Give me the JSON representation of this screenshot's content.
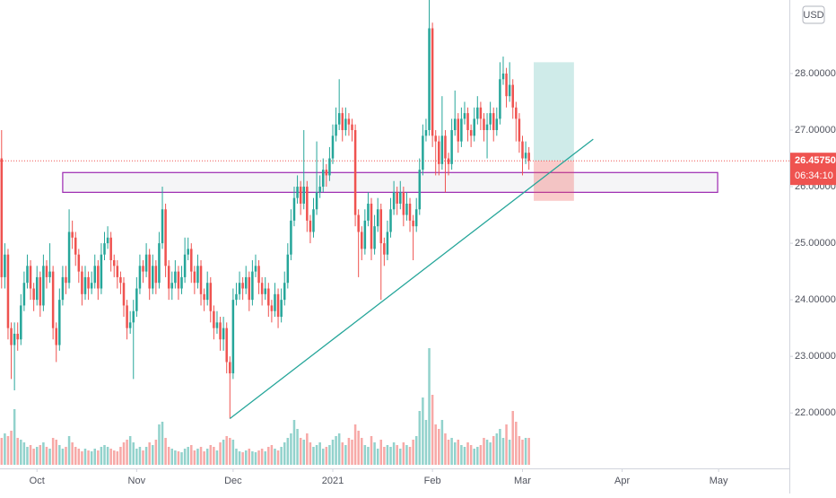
{
  "chart_data": {
    "type": "candlestick",
    "x": [
      0,
      1,
      2,
      3,
      4,
      5,
      6,
      7,
      8,
      9,
      10,
      11,
      12,
      13,
      14,
      15,
      16,
      17,
      18,
      19,
      20,
      21,
      22,
      23,
      24,
      25,
      26,
      27,
      28,
      29,
      30,
      31,
      32,
      33,
      34,
      35,
      36,
      37,
      38,
      39,
      40,
      41,
      42,
      43,
      44,
      45,
      46,
      47,
      48,
      49,
      50,
      51,
      52,
      53,
      54,
      55,
      56,
      57,
      58,
      59,
      60,
      61,
      62,
      63,
      64,
      65,
      66,
      67,
      68,
      69,
      70,
      71,
      72,
      73,
      74,
      75,
      76,
      77,
      78,
      79,
      80,
      81,
      82,
      83,
      84,
      85,
      86,
      87,
      88,
      89,
      90,
      91,
      92,
      93,
      94,
      95,
      96,
      97,
      98,
      99,
      100,
      101,
      102,
      103,
      104,
      105,
      106,
      107,
      108,
      109,
      110,
      111,
      112,
      113,
      114,
      115,
      116,
      117,
      118,
      119,
      120,
      121,
      122,
      123,
      124,
      125,
      126,
      127,
      128,
      129,
      130,
      131,
      132,
      133,
      134,
      135,
      136,
      137,
      138,
      139,
      140,
      141,
      142,
      143,
      144,
      145,
      146,
      147,
      148,
      149,
      150,
      151,
      152,
      153,
      154,
      155,
      156,
      157,
      158,
      159,
      160,
      161,
      162,
      163,
      164
    ],
    "open": [
      26.5,
      24.4,
      24.8,
      23.5,
      23.2,
      23.4,
      23.3,
      23.9,
      24.3,
      24.6,
      24.2,
      24.0,
      24.4,
      23.9,
      24.6,
      24.4,
      24.5,
      23.5,
      23.2,
      24.0,
      24.4,
      24.3,
      25.2,
      25.1,
      24.8,
      24.5,
      24.1,
      24.4,
      24.2,
      24.3,
      24.6,
      24.2,
      24.8,
      25.0,
      25.1,
      24.7,
      24.6,
      24.4,
      24.3,
      23.9,
      23.5,
      23.6,
      23.8,
      24.2,
      24.6,
      24.5,
      24.8,
      24.2,
      24.6,
      24.3,
      25.0,
      25.6,
      24.6,
      24.2,
      24.3,
      24.5,
      24.2,
      24.4,
      24.8,
      24.9,
      24.5,
      24.3,
      24.6,
      24.1,
      24.0,
      24.3,
      23.8,
      23.5,
      23.6,
      23.3,
      23.5,
      22.9,
      22.7,
      24.0,
      24.1,
      24.3,
      24.2,
      24.4,
      24.0,
      24.5,
      24.6,
      24.3,
      24.1,
      24.2,
      23.9,
      23.8,
      24.1,
      23.7,
      24.0,
      24.3,
      24.8,
      25.4,
      25.8,
      26.0,
      25.7,
      26.0,
      25.4,
      25.2,
      25.6,
      25.9,
      26.0,
      26.3,
      26.2,
      26.5,
      26.9,
      27.1,
      27.3,
      27.0,
      27.2,
      27.1,
      27.0,
      25.5,
      25.2,
      24.9,
      25.4,
      25.7,
      24.9,
      25.3,
      25.6,
      25.0,
      24.8,
      25.2,
      25.6,
      25.9,
      25.7,
      25.9,
      25.5,
      25.7,
      25.4,
      25.3,
      25.6,
      26.3,
      26.9,
      27.0,
      28.8,
      26.9,
      26.8,
      26.4,
      26.9,
      26.5,
      26.4,
      27.0,
      27.2,
      26.8,
      27.2,
      27.3,
      27.0,
      26.9,
      27.2,
      27.4,
      27.2,
      27.0,
      27.1,
      27.3,
      27.0,
      27.2,
      27.9,
      28.0,
      27.6,
      27.8,
      27.4,
      27.2,
      26.8,
      26.5,
      26.6
    ],
    "high": [
      27.0,
      25.0,
      24.9,
      23.6,
      23.6,
      23.6,
      24.1,
      24.5,
      24.8,
      24.7,
      24.3,
      24.6,
      24.5,
      24.8,
      24.7,
      25.0,
      24.6,
      23.6,
      24.2,
      24.6,
      24.6,
      25.6,
      25.4,
      25.2,
      24.9,
      24.6,
      24.6,
      24.5,
      24.5,
      24.8,
      24.7,
      25.0,
      25.2,
      25.3,
      25.2,
      24.8,
      24.7,
      24.5,
      24.4,
      24.0,
      23.8,
      24.0,
      24.4,
      24.8,
      24.7,
      25.0,
      24.9,
      24.8,
      24.7,
      25.2,
      26.0,
      25.7,
      24.7,
      24.5,
      24.7,
      24.6,
      24.6,
      25.1,
      25.1,
      25.0,
      24.6,
      24.8,
      24.7,
      24.2,
      24.5,
      24.4,
      23.9,
      23.8,
      23.7,
      23.7,
      23.6,
      23.0,
      24.2,
      24.3,
      24.5,
      24.4,
      24.6,
      24.5,
      24.7,
      24.8,
      24.7,
      24.4,
      24.4,
      24.3,
      24.0,
      24.3,
      24.2,
      24.2,
      24.5,
      25.0,
      25.6,
      26.0,
      26.2,
      26.1,
      27.0,
      26.1,
      25.5,
      25.8,
      26.8,
      26.2,
      26.5,
      26.4,
      26.7,
      27.1,
      27.4,
      27.9,
      27.4,
      27.4,
      27.3,
      27.2,
      27.1,
      25.6,
      25.3,
      25.6,
      25.9,
      25.8,
      25.5,
      25.8,
      25.7,
      25.1,
      25.4,
      25.8,
      26.1,
      26.0,
      26.1,
      26.0,
      25.9,
      25.8,
      25.5,
      25.8,
      26.5,
      27.1,
      27.2,
      29.3,
      28.9,
      27.0,
      26.9,
      27.6,
      27.0,
      26.6,
      27.2,
      27.7,
      27.3,
      27.4,
      27.5,
      27.4,
      27.1,
      27.4,
      27.6,
      27.5,
      27.3,
      27.3,
      27.5,
      27.4,
      27.4,
      28.2,
      28.3,
      28.1,
      28.2,
      27.9,
      27.5,
      27.3,
      26.9,
      26.8,
      26.7
    ],
    "low": [
      24.2,
      24.2,
      23.3,
      22.6,
      22.4,
      23.1,
      23.2,
      23.8,
      24.2,
      24.0,
      23.8,
      23.9,
      23.7,
      23.8,
      24.2,
      24.3,
      23.3,
      22.9,
      23.1,
      23.9,
      24.1,
      24.2,
      24.9,
      24.6,
      24.3,
      23.9,
      24.0,
      24.0,
      24.1,
      24.2,
      24.0,
      24.1,
      24.7,
      24.9,
      24.5,
      24.4,
      24.2,
      24.1,
      23.7,
      23.3,
      23.4,
      22.6,
      23.7,
      24.1,
      24.3,
      24.4,
      24.0,
      24.1,
      24.1,
      24.2,
      24.9,
      24.4,
      24.0,
      24.0,
      24.2,
      24.0,
      24.1,
      24.3,
      24.7,
      24.3,
      24.1,
      24.2,
      23.9,
      23.8,
      23.9,
      23.6,
      23.3,
      23.4,
      23.1,
      23.1,
      22.7,
      21.9,
      22.6,
      23.9,
      24.0,
      24.0,
      24.1,
      23.8,
      23.9,
      24.4,
      24.1,
      23.9,
      24.0,
      23.7,
      23.6,
      23.7,
      23.5,
      23.6,
      23.9,
      24.2,
      24.7,
      25.3,
      25.7,
      25.5,
      25.6,
      25.2,
      25.0,
      25.1,
      25.5,
      25.8,
      25.9,
      26.0,
      26.1,
      26.4,
      26.8,
      27.0,
      26.8,
      26.9,
      26.9,
      26.8,
      25.3,
      24.4,
      24.7,
      24.8,
      25.3,
      24.7,
      24.8,
      25.2,
      24.0,
      24.6,
      24.7,
      25.1,
      25.5,
      25.5,
      25.6,
      25.3,
      25.4,
      25.2,
      24.7,
      25.2,
      25.5,
      26.2,
      26.8,
      26.9,
      26.7,
      26.2,
      26.2,
      26.3,
      25.9,
      26.2,
      26.3,
      26.9,
      26.6,
      26.7,
      27.1,
      26.8,
      26.7,
      26.8,
      27.1,
      27.0,
      26.8,
      26.5,
      27.0,
      26.8,
      26.9,
      27.1,
      27.8,
      27.4,
      27.5,
      27.2,
      26.8,
      26.6,
      26.2,
      26.4,
      26.3
    ],
    "close": [
      24.4,
      24.8,
      23.5,
      23.2,
      23.4,
      23.3,
      23.9,
      24.3,
      24.6,
      24.2,
      24.0,
      24.4,
      23.9,
      24.6,
      24.4,
      24.5,
      23.5,
      23.2,
      24.0,
      24.4,
      24.3,
      25.2,
      25.1,
      24.8,
      24.5,
      24.1,
      24.4,
      24.2,
      24.3,
      24.6,
      24.2,
      24.8,
      25.0,
      25.1,
      24.7,
      24.6,
      24.4,
      24.3,
      23.9,
      23.5,
      23.6,
      23.8,
      24.2,
      24.6,
      24.5,
      24.8,
      24.2,
      24.6,
      24.3,
      25.0,
      25.6,
      24.6,
      24.2,
      24.3,
      24.5,
      24.2,
      24.4,
      24.8,
      24.9,
      24.5,
      24.3,
      24.6,
      24.1,
      24.0,
      24.3,
      23.8,
      23.5,
      23.6,
      23.3,
      23.5,
      22.9,
      22.7,
      24.0,
      24.1,
      24.3,
      24.2,
      24.4,
      24.0,
      24.5,
      24.6,
      24.3,
      24.1,
      24.2,
      23.9,
      23.8,
      24.1,
      23.7,
      24.0,
      24.3,
      24.8,
      25.4,
      25.8,
      26.0,
      25.7,
      26.0,
      25.4,
      25.2,
      25.6,
      25.9,
      26.0,
      26.3,
      26.2,
      26.5,
      26.9,
      27.1,
      27.3,
      27.0,
      27.2,
      27.1,
      27.0,
      25.5,
      25.2,
      24.9,
      25.4,
      25.7,
      24.9,
      25.3,
      25.6,
      25.0,
      24.8,
      25.2,
      25.6,
      25.9,
      25.7,
      25.9,
      25.5,
      25.7,
      25.4,
      25.3,
      25.6,
      26.3,
      26.9,
      27.0,
      28.8,
      26.9,
      26.8,
      26.4,
      26.9,
      26.5,
      26.4,
      27.0,
      27.2,
      26.8,
      27.2,
      27.3,
      27.0,
      26.9,
      27.2,
      27.4,
      27.2,
      27.0,
      27.1,
      27.3,
      27.0,
      27.2,
      27.9,
      28.0,
      27.6,
      27.8,
      27.4,
      27.2,
      26.8,
      26.5,
      26.6,
      26.4575
    ],
    "volume": [
      30,
      35,
      32,
      38,
      62,
      30,
      28,
      25,
      20,
      22,
      18,
      20,
      22,
      25,
      20,
      18,
      30,
      28,
      22,
      18,
      20,
      32,
      25,
      20,
      18,
      15,
      18,
      16,
      15,
      18,
      16,
      20,
      22,
      20,
      18,
      16,
      15,
      20,
      25,
      28,
      32,
      25,
      18,
      20,
      16,
      20,
      25,
      22,
      28,
      45,
      48,
      30,
      20,
      18,
      16,
      15,
      14,
      18,
      20,
      22,
      16,
      18,
      20,
      15,
      18,
      22,
      20,
      16,
      25,
      28,
      32,
      30,
      28,
      18,
      15,
      14,
      16,
      18,
      15,
      14,
      16,
      18,
      15,
      20,
      22,
      18,
      16,
      20,
      25,
      30,
      35,
      50,
      40,
      30,
      28,
      35,
      25,
      20,
      22,
      25,
      18,
      20,
      22,
      28,
      32,
      35,
      25,
      22,
      30,
      28,
      45,
      38,
      30,
      22,
      20,
      32,
      25,
      18,
      28,
      20,
      22,
      20,
      25,
      22,
      18,
      25,
      22,
      20,
      28,
      32,
      60,
      75,
      50,
      130,
      78,
      45,
      40,
      50,
      35,
      28,
      30,
      25,
      28,
      22,
      20,
      25,
      22,
      18,
      20,
      22,
      30,
      28,
      25,
      32,
      35,
      40,
      30,
      45,
      28,
      60,
      48,
      32,
      28,
      30,
      30
    ],
    "up_color": "#26a69a",
    "down_color": "#ef5350",
    "xlim": [
      -0.5,
      245
    ],
    "xticks": [
      {
        "value": 11,
        "label": "Oct"
      },
      {
        "value": 42,
        "label": "Nov"
      },
      {
        "value": 72,
        "label": "Dec"
      },
      {
        "value": 103,
        "label": "2021"
      },
      {
        "value": 134,
        "label": "Feb"
      },
      {
        "value": 162,
        "label": "Mar"
      },
      {
        "value": 193,
        "label": "Apr"
      },
      {
        "value": 223,
        "label": "May"
      }
    ],
    "ylim": [
      21.02,
      29.3
    ],
    "yticks": [
      {
        "value": 22,
        "label": "22.00000"
      },
      {
        "value": 23,
        "label": "23.00000"
      },
      {
        "value": 24,
        "label": "24.00000"
      },
      {
        "value": 25,
        "label": "25.00000"
      },
      {
        "value": 26,
        "label": "26.00000"
      },
      {
        "value": 27,
        "label": "27.00000"
      },
      {
        "value": 28,
        "label": "28.00000"
      }
    ],
    "currency": "USD",
    "last_price": {
      "value": 26.4575,
      "label": "26.45750"
    },
    "countdown": "06:34:10",
    "trendline": {
      "x": [
        71,
        184
      ],
      "y": [
        21.9,
        26.84
      ],
      "color": "#26a69a"
    },
    "zone": {
      "x": [
        19,
        222.7
      ],
      "y": [
        25.9,
        26.25
      ],
      "color": "#9c27b0"
    },
    "position": {
      "x": [
        165.5,
        178
      ],
      "entry": 26.4575,
      "target": 28.2,
      "stop": 25.75
    }
  }
}
